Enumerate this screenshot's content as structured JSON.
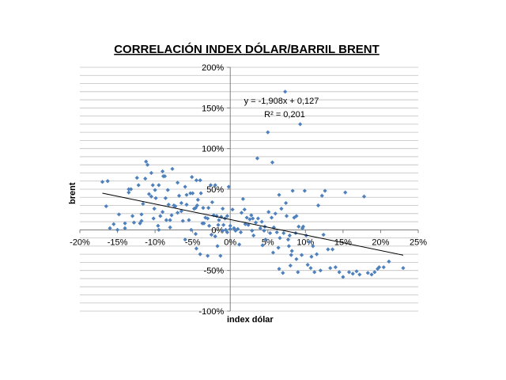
{
  "chart_data": {
    "type": "scatter",
    "title": "CORRELACIÓN INDEX DÓLAR/BARRIL BRENT",
    "xlabel": "index dólar",
    "ylabel": "brent",
    "xlim": [
      -0.2,
      0.25
    ],
    "ylim": [
      -1.0,
      2.0
    ],
    "x_ticks": [
      -0.2,
      -0.15,
      -0.1,
      -0.05,
      0.0,
      0.05,
      0.1,
      0.15,
      0.2,
      0.25
    ],
    "x_tick_labels": [
      "-20%",
      "-15%",
      "-10%",
      "-5%",
      "0%",
      "5%",
      "10%",
      "15%",
      "20%",
      "25%"
    ],
    "y_ticks": [
      2.0,
      1.5,
      1.0,
      0.5,
      0.0,
      -0.5,
      -1.0
    ],
    "y_tick_labels": [
      "200%",
      "150%",
      "100%",
      "50%",
      "0%",
      "-50%",
      "-100%"
    ],
    "minor_grid_step": 0.1,
    "grid": true,
    "marker_color": "#4f81bd",
    "trendline_color": "#000000",
    "trendline": {
      "slope": -1.908,
      "intercept": 0.127,
      "x_range": [
        -0.17,
        0.23
      ]
    },
    "equation_label": "y = -1,908x + 0,127",
    "r2_label": "R² = 0,201",
    "points": [
      [
        -0.17,
        0.59
      ],
      [
        -0.163,
        0.6
      ],
      [
        -0.165,
        0.29
      ],
      [
        -0.16,
        0.02
      ],
      [
        -0.155,
        0.07
      ],
      [
        -0.148,
        0.19
      ],
      [
        -0.14,
        0.02
      ],
      [
        -0.135,
        0.5
      ],
      [
        -0.132,
        0.5
      ],
      [
        -0.13,
        0.17
      ],
      [
        -0.128,
        0.09
      ],
      [
        -0.124,
        0.64
      ],
      [
        -0.122,
        0.55
      ],
      [
        -0.118,
        0.19
      ],
      [
        -0.118,
        0.11
      ],
      [
        -0.113,
        0.63
      ],
      [
        -0.112,
        0.84
      ],
      [
        -0.11,
        0.8
      ],
      [
        -0.108,
        0.44
      ],
      [
        -0.105,
        0.7
      ],
      [
        -0.105,
        0.41
      ],
      [
        -0.101,
        0.26
      ],
      [
        -0.1,
        0.49
      ],
      [
        -0.099,
        0.39
      ],
      [
        -0.096,
        0.05
      ],
      [
        -0.095,
        0.55
      ],
      [
        -0.093,
        0.17
      ],
      [
        -0.09,
        0.72
      ],
      [
        -0.089,
        0.66
      ],
      [
        -0.087,
        0.66
      ],
      [
        -0.086,
        0.39
      ],
      [
        -0.083,
        0.49
      ],
      [
        -0.082,
        0.31
      ],
      [
        -0.08,
        0.12
      ],
      [
        -0.077,
        0.75
      ],
      [
        -0.075,
        0.3
      ],
      [
        -0.073,
        0.29
      ],
      [
        -0.07,
        0.58
      ],
      [
        -0.068,
        0.42
      ],
      [
        -0.065,
        0.33
      ],
      [
        -0.063,
        0.11
      ],
      [
        -0.06,
        0.53
      ],
      [
        -0.058,
        0.43
      ],
      [
        -0.055,
        0.12
      ],
      [
        -0.053,
        0.45
      ],
      [
        -0.051,
        0.65
      ],
      [
        -0.05,
        0.45
      ],
      [
        -0.048,
        0.26
      ],
      [
        -0.046,
        0.27
      ],
      [
        -0.045,
        0.61
      ],
      [
        -0.043,
        0.37
      ],
      [
        -0.04,
        0.61
      ],
      [
        -0.039,
        0.45
      ],
      [
        -0.037,
        0.08
      ],
      [
        -0.035,
        0.08
      ],
      [
        -0.033,
        0.15
      ],
      [
        -0.03,
        0.14
      ],
      [
        -0.029,
        0.27
      ],
      [
        -0.026,
        0.55
      ],
      [
        -0.024,
        0.34
      ],
      [
        -0.022,
        0.18
      ],
      [
        -0.02,
        0.55
      ],
      [
        -0.018,
        0.17
      ],
      [
        -0.016,
        0.06
      ],
      [
        -0.015,
        0.12
      ],
      [
        -0.012,
        0.16
      ],
      [
        -0.01,
        0.26
      ],
      [
        -0.009,
        0.06
      ],
      [
        -0.007,
        0.14
      ],
      [
        -0.004,
        0.17
      ],
      [
        -0.002,
        0.53
      ],
      [
        0.0,
        0.05
      ],
      [
        0.0,
        0.01
      ],
      [
        -0.102,
        0.14
      ],
      [
        -0.103,
        0.55
      ],
      [
        -0.08,
        0.03
      ],
      [
        -0.07,
        0.21
      ],
      [
        -0.06,
        -0.12
      ],
      [
        -0.052,
        0.0
      ],
      [
        -0.046,
        -0.05
      ],
      [
        -0.045,
        -0.23
      ],
      [
        -0.04,
        -0.3
      ],
      [
        -0.03,
        -0.32
      ],
      [
        -0.025,
        -0.06
      ],
      [
        -0.02,
        -0.08
      ],
      [
        -0.017,
        -0.2
      ],
      [
        -0.013,
        -0.32
      ],
      [
        -0.01,
        -0.01
      ],
      [
        -0.006,
        0.0
      ],
      [
        -0.004,
        -0.03
      ],
      [
        0.003,
        0.25
      ],
      [
        0.005,
        0.02
      ],
      [
        0.007,
        -0.01
      ],
      [
        0.01,
        0.01
      ],
      [
        0.012,
        -0.18
      ],
      [
        0.014,
        -0.03
      ],
      [
        0.017,
        0.38
      ],
      [
        0.019,
        0.25
      ],
      [
        0.02,
        0.07
      ],
      [
        0.022,
        0.15
      ],
      [
        0.024,
        0.06
      ],
      [
        0.026,
        0.13
      ],
      [
        0.028,
        0.18
      ],
      [
        0.03,
        0.14
      ],
      [
        0.031,
        -0.07
      ],
      [
        0.034,
        0.09
      ],
      [
        0.036,
        0.88
      ],
      [
        0.037,
        0.14
      ],
      [
        0.04,
        0.02
      ],
      [
        0.042,
        0.1
      ],
      [
        0.043,
        -0.19
      ],
      [
        0.046,
        0.04
      ],
      [
        0.047,
        -0.12
      ],
      [
        0.05,
        1.2
      ],
      [
        0.051,
        0.22
      ],
      [
        0.053,
        -0.04
      ],
      [
        0.055,
        0.15
      ],
      [
        0.056,
        0.83
      ],
      [
        0.057,
        -0.28
      ],
      [
        0.058,
        0.03
      ],
      [
        0.06,
        0.2
      ],
      [
        0.062,
        -0.03
      ],
      [
        0.064,
        -0.22
      ],
      [
        0.065,
        -0.48
      ],
      [
        0.066,
        -0.1
      ],
      [
        0.068,
        0.26
      ],
      [
        0.07,
        -0.53
      ],
      [
        0.071,
        -0.04
      ],
      [
        0.073,
        1.7
      ],
      [
        0.074,
        0.33
      ],
      [
        0.075,
        0.17
      ],
      [
        0.077,
        -0.12
      ],
      [
        0.078,
        -0.2
      ],
      [
        0.08,
        -0.44
      ],
      [
        0.081,
        -0.31
      ],
      [
        0.083,
        0.48
      ],
      [
        0.085,
        0.15
      ],
      [
        0.087,
        -0.04
      ],
      [
        0.088,
        -0.36
      ],
      [
        0.09,
        -0.52
      ],
      [
        0.091,
        0.04
      ],
      [
        0.093,
        1.3
      ],
      [
        0.095,
        -0.31
      ],
      [
        0.097,
        0.04
      ],
      [
        0.099,
        0.48
      ],
      [
        0.101,
        -0.07
      ],
      [
        0.103,
        -0.43
      ],
      [
        0.105,
        -0.15
      ],
      [
        0.107,
        -0.47
      ],
      [
        0.108,
        -0.33
      ],
      [
        0.11,
        -0.2
      ],
      [
        0.112,
        -0.52
      ],
      [
        0.115,
        -0.3
      ],
      [
        0.117,
        0.3
      ],
      [
        0.12,
        -0.5
      ],
      [
        0.122,
        0.42
      ],
      [
        0.124,
        -0.06
      ],
      [
        0.126,
        0.48
      ],
      [
        0.13,
        -0.24
      ],
      [
        0.133,
        -0.47
      ],
      [
        0.136,
        -0.24
      ],
      [
        0.14,
        -0.46
      ],
      [
        0.145,
        -0.52
      ],
      [
        0.15,
        -0.58
      ],
      [
        0.153,
        0.46
      ],
      [
        0.158,
        -0.52
      ],
      [
        0.163,
        -0.54
      ],
      [
        0.168,
        -0.51
      ],
      [
        0.172,
        -0.55
      ],
      [
        0.178,
        0.41
      ],
      [
        0.183,
        -0.53
      ],
      [
        0.188,
        -0.55
      ],
      [
        0.192,
        -0.52
      ],
      [
        0.196,
        -0.48
      ],
      [
        0.198,
        -0.46
      ],
      [
        0.204,
        -0.46
      ],
      [
        0.211,
        -0.39
      ],
      [
        0.23,
        -0.47
      ],
      [
        0.082,
        -0.26
      ],
      [
        0.065,
        0.43
      ],
      [
        0.045,
        -0.01
      ],
      [
        0.079,
        -0.07
      ],
      [
        0.088,
        0.17
      ],
      [
        0.096,
        0.02
      ],
      [
        0.029,
        -0.01
      ],
      [
        0.015,
        0.21
      ],
      [
        -0.135,
        0.46
      ],
      [
        -0.116,
        0.32
      ],
      [
        -0.09,
        0.22
      ],
      [
        -0.085,
        0.12
      ],
      [
        -0.065,
        0.23
      ],
      [
        -0.044,
        0.3
      ],
      [
        -0.036,
        0.27
      ],
      [
        -0.028,
        0.05
      ],
      [
        -0.12,
        0.08
      ],
      [
        -0.14,
        0.08
      ],
      [
        -0.15,
        0.0
      ],
      [
        -0.095,
        0.0
      ],
      [
        -0.078,
        0.18
      ],
      [
        -0.058,
        0.31
      ]
    ]
  }
}
